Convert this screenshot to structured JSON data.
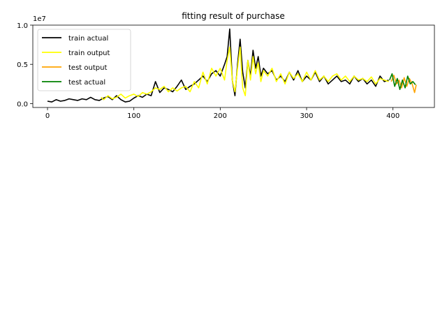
{
  "chart_data": {
    "type": "line",
    "title": "fitting result of purchase",
    "xlabel": "",
    "ylabel": "",
    "y_offset_label": "1e7",
    "xlim": [
      -17,
      448
    ],
    "ylim": [
      -0.05,
      1.0
    ],
    "x_ticks": [
      0,
      100,
      200,
      300,
      400
    ],
    "y_ticks": [
      0.0,
      0.5,
      1.0
    ],
    "x_tick_labels": [
      "0",
      "100",
      "200",
      "300",
      "400"
    ],
    "y_tick_labels": [
      "0.0",
      "0.5",
      "1.0"
    ],
    "grid": false,
    "legend_position": "upper-left",
    "series": [
      {
        "name": "train actual",
        "color": "#000000",
        "points": [
          [
            0,
            0.03
          ],
          [
            5,
            0.02
          ],
          [
            10,
            0.05
          ],
          [
            15,
            0.03
          ],
          [
            20,
            0.04
          ],
          [
            25,
            0.06
          ],
          [
            30,
            0.05
          ],
          [
            35,
            0.04
          ],
          [
            40,
            0.06
          ],
          [
            45,
            0.05
          ],
          [
            50,
            0.08
          ],
          [
            55,
            0.05
          ],
          [
            60,
            0.04
          ],
          [
            65,
            0.07
          ],
          [
            70,
            0.09
          ],
          [
            75,
            0.05
          ],
          [
            80,
            0.1
          ],
          [
            85,
            0.05
          ],
          [
            90,
            0.02
          ],
          [
            95,
            0.03
          ],
          [
            100,
            0.07
          ],
          [
            105,
            0.1
          ],
          [
            110,
            0.08
          ],
          [
            115,
            0.12
          ],
          [
            120,
            0.1
          ],
          [
            125,
            0.28
          ],
          [
            130,
            0.14
          ],
          [
            135,
            0.2
          ],
          [
            140,
            0.18
          ],
          [
            145,
            0.15
          ],
          [
            150,
            0.22
          ],
          [
            155,
            0.3
          ],
          [
            160,
            0.18
          ],
          [
            165,
            0.22
          ],
          [
            170,
            0.25
          ],
          [
            175,
            0.3
          ],
          [
            180,
            0.35
          ],
          [
            185,
            0.28
          ],
          [
            190,
            0.38
          ],
          [
            195,
            0.42
          ],
          [
            200,
            0.35
          ],
          [
            205,
            0.5
          ],
          [
            208,
            0.6
          ],
          [
            211,
            0.95
          ],
          [
            214,
            0.3
          ],
          [
            217,
            0.1
          ],
          [
            220,
            0.5
          ],
          [
            223,
            0.82
          ],
          [
            226,
            0.4
          ],
          [
            229,
            0.2
          ],
          [
            232,
            0.55
          ],
          [
            235,
            0.35
          ],
          [
            238,
            0.68
          ],
          [
            241,
            0.45
          ],
          [
            244,
            0.6
          ],
          [
            247,
            0.35
          ],
          [
            250,
            0.45
          ],
          [
            255,
            0.38
          ],
          [
            260,
            0.42
          ],
          [
            265,
            0.3
          ],
          [
            270,
            0.35
          ],
          [
            275,
            0.28
          ],
          [
            280,
            0.4
          ],
          [
            285,
            0.3
          ],
          [
            290,
            0.42
          ],
          [
            295,
            0.28
          ],
          [
            300,
            0.35
          ],
          [
            305,
            0.3
          ],
          [
            310,
            0.4
          ],
          [
            315,
            0.28
          ],
          [
            320,
            0.35
          ],
          [
            325,
            0.25
          ],
          [
            330,
            0.3
          ],
          [
            335,
            0.35
          ],
          [
            340,
            0.28
          ],
          [
            345,
            0.3
          ],
          [
            350,
            0.25
          ],
          [
            355,
            0.35
          ],
          [
            360,
            0.28
          ],
          [
            365,
            0.32
          ],
          [
            370,
            0.25
          ],
          [
            375,
            0.3
          ],
          [
            380,
            0.22
          ],
          [
            385,
            0.35
          ],
          [
            390,
            0.28
          ],
          [
            395,
            0.3
          ]
        ]
      },
      {
        "name": "train output",
        "color": "#ffff00",
        "points": [
          [
            62,
            0.08
          ],
          [
            65,
            0.05
          ],
          [
            70,
            0.1
          ],
          [
            75,
            0.06
          ],
          [
            80,
            0.08
          ],
          [
            85,
            0.12
          ],
          [
            90,
            0.07
          ],
          [
            95,
            0.1
          ],
          [
            100,
            0.12
          ],
          [
            105,
            0.09
          ],
          [
            110,
            0.14
          ],
          [
            115,
            0.12
          ],
          [
            120,
            0.15
          ],
          [
            125,
            0.2
          ],
          [
            130,
            0.18
          ],
          [
            135,
            0.22
          ],
          [
            140,
            0.15
          ],
          [
            145,
            0.2
          ],
          [
            150,
            0.16
          ],
          [
            155,
            0.2
          ],
          [
            160,
            0.22
          ],
          [
            165,
            0.15
          ],
          [
            170,
            0.28
          ],
          [
            175,
            0.2
          ],
          [
            180,
            0.4
          ],
          [
            185,
            0.25
          ],
          [
            190,
            0.45
          ],
          [
            195,
            0.35
          ],
          [
            200,
            0.45
          ],
          [
            205,
            0.3
          ],
          [
            208,
            0.55
          ],
          [
            211,
            0.72
          ],
          [
            214,
            0.3
          ],
          [
            217,
            0.15
          ],
          [
            220,
            0.45
          ],
          [
            223,
            0.72
          ],
          [
            226,
            0.2
          ],
          [
            229,
            0.1
          ],
          [
            232,
            0.55
          ],
          [
            235,
            0.3
          ],
          [
            238,
            0.6
          ],
          [
            241,
            0.38
          ],
          [
            244,
            0.52
          ],
          [
            247,
            0.28
          ],
          [
            250,
            0.42
          ],
          [
            255,
            0.35
          ],
          [
            260,
            0.45
          ],
          [
            265,
            0.28
          ],
          [
            270,
            0.38
          ],
          [
            275,
            0.25
          ],
          [
            280,
            0.4
          ],
          [
            285,
            0.32
          ],
          [
            290,
            0.38
          ],
          [
            295,
            0.28
          ],
          [
            300,
            0.4
          ],
          [
            305,
            0.3
          ],
          [
            310,
            0.42
          ],
          [
            315,
            0.3
          ],
          [
            320,
            0.35
          ],
          [
            325,
            0.28
          ],
          [
            330,
            0.35
          ],
          [
            335,
            0.38
          ],
          [
            340,
            0.3
          ],
          [
            345,
            0.35
          ],
          [
            350,
            0.28
          ],
          [
            355,
            0.35
          ],
          [
            360,
            0.3
          ],
          [
            365,
            0.32
          ],
          [
            370,
            0.28
          ],
          [
            375,
            0.34
          ],
          [
            380,
            0.25
          ],
          [
            385,
            0.32
          ],
          [
            390,
            0.3
          ],
          [
            395,
            0.28
          ]
        ]
      },
      {
        "name": "test output",
        "color": "#ffa500",
        "points": [
          [
            398,
            0.28
          ],
          [
            401,
            0.36
          ],
          [
            404,
            0.25
          ],
          [
            407,
            0.3
          ],
          [
            410,
            0.2
          ],
          [
            413,
            0.33
          ],
          [
            416,
            0.22
          ],
          [
            419,
            0.32
          ],
          [
            422,
            0.26
          ],
          [
            425,
            0.14
          ],
          [
            427,
            0.24
          ]
        ]
      },
      {
        "name": "test actual",
        "color": "#008000",
        "points": [
          [
            396,
            0.3
          ],
          [
            399,
            0.38
          ],
          [
            402,
            0.22
          ],
          [
            405,
            0.32
          ],
          [
            408,
            0.18
          ],
          [
            411,
            0.3
          ],
          [
            414,
            0.2
          ],
          [
            417,
            0.35
          ],
          [
            420,
            0.25
          ],
          [
            423,
            0.28
          ],
          [
            426,
            0.24
          ]
        ]
      }
    ]
  }
}
